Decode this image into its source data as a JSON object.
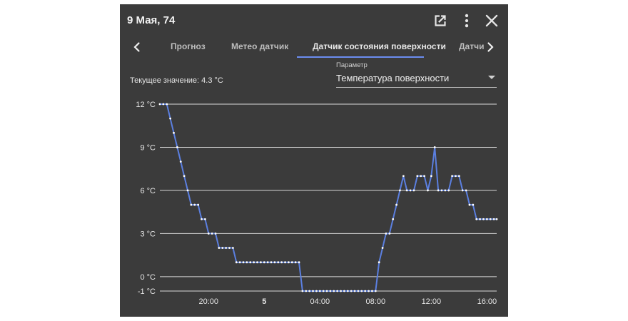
{
  "header": {
    "title": "9 Мая, 74"
  },
  "tabs": [
    {
      "label": "Прогноз",
      "active": false
    },
    {
      "label": "Метео датчик",
      "active": false
    },
    {
      "label": "Датчик состояния поверхности",
      "active": true
    },
    {
      "label": "Датчик",
      "active": false
    }
  ],
  "current": {
    "text": "Текущее значение: 4.3 °C"
  },
  "parameter": {
    "label": "Параметр",
    "value": "Температура поверхности"
  },
  "colors": {
    "background": "#3b3b3b",
    "accent": "#6b8df0",
    "line": "#5b7fe0"
  },
  "chart_data": {
    "type": "line",
    "y_ticks": [
      {
        "value": 12,
        "label": "12 °C"
      },
      {
        "value": 9,
        "label": "9 °C"
      },
      {
        "value": 6,
        "label": "6 °C"
      },
      {
        "value": 3,
        "label": "3 °C"
      },
      {
        "value": 0,
        "label": "0 °C"
      },
      {
        "value": -1,
        "label": "-1 °C"
      }
    ],
    "x_ticks": [
      {
        "value": 20,
        "label": "20:00",
        "bold": false
      },
      {
        "value": 24,
        "label": "5",
        "bold": true
      },
      {
        "value": 28,
        "label": "04:00",
        "bold": false
      },
      {
        "value": 32,
        "label": "08:00",
        "bold": false
      },
      {
        "value": 36,
        "label": "12:00",
        "bold": false
      },
      {
        "value": 40,
        "label": "16:00",
        "bold": false
      }
    ],
    "xlim": [
      16.5,
      40.7
    ],
    "ylim": [
      -1,
      12
    ],
    "grid": true,
    "series": [
      {
        "x": [
          16.5,
          16.75,
          17.0,
          17.25,
          17.5,
          17.75,
          18.0,
          18.25,
          18.5,
          18.75,
          19.0,
          19.25,
          19.5,
          19.75,
          20.0,
          20.25,
          20.5,
          20.75,
          21.0,
          21.25,
          21.5,
          21.75,
          22.0,
          22.25,
          22.5,
          22.75,
          23.0,
          23.25,
          23.5,
          23.75,
          24.0,
          24.25,
          24.5,
          24.75,
          25.0,
          25.25,
          25.5,
          25.75,
          26.0,
          26.25,
          26.5,
          26.75,
          27.0,
          27.25,
          27.5,
          27.75,
          28.0,
          28.25,
          28.5,
          28.75,
          29.0,
          29.25,
          29.5,
          29.75,
          30.0,
          30.25,
          30.5,
          30.75,
          31.0,
          31.25,
          31.5,
          31.75,
          32.0,
          32.25,
          32.5,
          32.75,
          33.0,
          33.25,
          33.5,
          33.75,
          34.0,
          34.25,
          34.5,
          34.75,
          35.0,
          35.25,
          35.5,
          35.75,
          36.0,
          36.25,
          36.5,
          36.75,
          37.0,
          37.25,
          37.5,
          37.75,
          38.0,
          38.25,
          38.5,
          38.75,
          39.0,
          39.25,
          39.5,
          39.75,
          40.0,
          40.25,
          40.5,
          40.7
        ],
        "y": [
          12,
          12,
          12,
          11,
          10,
          9,
          8,
          7,
          6,
          5,
          5,
          5,
          4,
          4,
          3,
          3,
          3,
          2,
          2,
          2,
          2,
          2,
          1,
          1,
          1,
          1,
          1,
          1,
          1,
          1,
          1,
          1,
          1,
          1,
          1,
          1,
          1,
          1,
          1,
          1,
          1,
          -1,
          -1,
          -1,
          -1,
          -1,
          -1,
          -1,
          -1,
          -1,
          -1,
          -1,
          -1,
          -1,
          -1,
          -1,
          -1,
          -1,
          -1,
          -1,
          -1,
          -1,
          -1,
          1,
          2,
          3,
          3,
          4,
          5,
          6,
          7,
          6,
          6,
          6,
          7,
          7,
          7,
          6,
          7,
          9,
          6,
          6,
          6,
          6,
          7,
          7,
          7,
          6,
          6,
          5,
          5,
          4,
          4,
          4,
          4,
          4,
          4,
          4
        ]
      }
    ]
  }
}
